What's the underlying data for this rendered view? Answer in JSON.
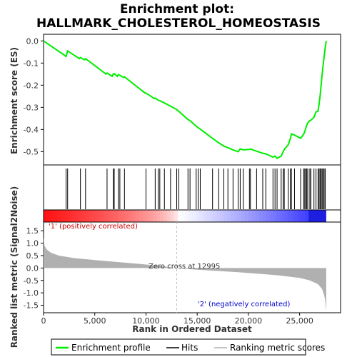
{
  "chart_data": {
    "type": "line",
    "title_line1": "Enrichment plot:",
    "title_line2": "HALLMARK_CHOLESTEROL_HOMEOSTASIS",
    "top_ylabel": "Enrichment score (ES)",
    "bottom_ylabel": "Ranked list metric (Signal2Noise)",
    "xlabel": "Rank in Ordered Dataset",
    "xlim": [
      0,
      29000
    ],
    "x_ticks": [
      0,
      5000,
      10000,
      15000,
      20000,
      25000
    ],
    "x_tick_labels": [
      "0",
      "5,000",
      "10,000",
      "15,000",
      "20,000",
      "25,000"
    ],
    "es_ylim": [
      -0.56,
      0.03
    ],
    "es_ticks": [
      0.0,
      -0.1,
      -0.2,
      -0.3,
      -0.4,
      -0.5
    ],
    "es_tick_labels": [
      "0.0",
      "-0.1",
      "-0.2",
      "-0.3",
      "-0.4",
      "-0.5"
    ],
    "metric_ylim": [
      -1.8,
      1.85
    ],
    "metric_ticks": [
      1.5,
      1.0,
      0.5,
      0.0,
      -0.5,
      -1.0,
      -1.5
    ],
    "metric_tick_labels": [
      "1.5",
      "1.0",
      "0.5",
      "0.0",
      "-0.5",
      "-1.0",
      "-1.5"
    ],
    "zero_cross_rank": 12995,
    "zero_cross_label": "Zero cross at 12995",
    "positive_label": "'1' (positively correlated)",
    "negative_label": "'2' (negatively correlated)",
    "n_genes": 27600,
    "hits": [
      2200,
      2350,
      3600,
      4100,
      6200,
      6800,
      6900,
      7300,
      7450,
      7900,
      10000,
      10900,
      11200,
      11350,
      11800,
      12400,
      13000,
      13200,
      14100,
      14300,
      14900,
      15100,
      15300,
      16500,
      17100,
      17600,
      18000,
      18500,
      19000,
      19200,
      19500,
      20100,
      20200,
      20800,
      21400,
      21700,
      22400,
      22600,
      22800,
      23200,
      23400,
      23500,
      23900,
      24100,
      24200,
      24500,
      25100,
      25400,
      25500,
      25600,
      25700,
      25800,
      26000,
      26100,
      26400,
      26600,
      26800,
      26900,
      27000,
      27100,
      27200,
      27300,
      27400,
      27500
    ],
    "es_curve": [
      [
        0,
        0.0
      ],
      [
        2200,
        -0.07
      ],
      [
        2350,
        -0.045
      ],
      [
        3500,
        -0.08
      ],
      [
        3600,
        -0.075
      ],
      [
        4000,
        -0.085
      ],
      [
        4100,
        -0.08
      ],
      [
        6100,
        -0.15
      ],
      [
        6200,
        -0.145
      ],
      [
        6700,
        -0.16
      ],
      [
        6800,
        -0.15
      ],
      [
        6900,
        -0.148
      ],
      [
        7200,
        -0.16
      ],
      [
        7300,
        -0.152
      ],
      [
        7450,
        -0.155
      ],
      [
        7800,
        -0.165
      ],
      [
        7900,
        -0.162
      ],
      [
        9900,
        -0.235
      ],
      [
        10000,
        -0.235
      ],
      [
        10800,
        -0.26
      ],
      [
        10900,
        -0.258
      ],
      [
        11200,
        -0.268
      ],
      [
        11350,
        -0.27
      ],
      [
        11800,
        -0.28
      ],
      [
        12400,
        -0.295
      ],
      [
        13000,
        -0.31
      ],
      [
        13200,
        -0.318
      ],
      [
        14100,
        -0.355
      ],
      [
        14300,
        -0.36
      ],
      [
        14900,
        -0.385
      ],
      [
        15100,
        -0.392
      ],
      [
        15300,
        -0.398
      ],
      [
        16500,
        -0.44
      ],
      [
        17100,
        -0.46
      ],
      [
        17600,
        -0.475
      ],
      [
        18000,
        -0.482
      ],
      [
        18500,
        -0.492
      ],
      [
        19000,
        -0.5
      ],
      [
        19200,
        -0.488
      ],
      [
        19500,
        -0.492
      ],
      [
        20100,
        -0.49
      ],
      [
        20200,
        -0.488
      ],
      [
        20800,
        -0.498
      ],
      [
        21400,
        -0.507
      ],
      [
        21700,
        -0.51
      ],
      [
        22400,
        -0.525
      ],
      [
        22600,
        -0.52
      ],
      [
        22800,
        -0.53
      ],
      [
        23200,
        -0.52
      ],
      [
        23400,
        -0.5
      ],
      [
        23500,
        -0.49
      ],
      [
        23900,
        -0.468
      ],
      [
        24100,
        -0.44
      ],
      [
        24200,
        -0.42
      ],
      [
        24500,
        -0.425
      ],
      [
        25100,
        -0.44
      ],
      [
        25400,
        -0.42
      ],
      [
        25500,
        -0.41
      ],
      [
        25600,
        -0.395
      ],
      [
        25700,
        -0.38
      ],
      [
        25800,
        -0.37
      ],
      [
        26000,
        -0.36
      ],
      [
        26100,
        -0.358
      ],
      [
        26400,
        -0.345
      ],
      [
        26600,
        -0.32
      ],
      [
        26800,
        -0.318
      ],
      [
        26900,
        -0.285
      ],
      [
        27000,
        -0.25
      ],
      [
        27100,
        -0.2
      ],
      [
        27200,
        -0.15
      ],
      [
        27300,
        -0.11
      ],
      [
        27400,
        -0.07
      ],
      [
        27500,
        -0.03
      ],
      [
        27600,
        0.0
      ]
    ],
    "metric_curve": [
      [
        0,
        1.25
      ],
      [
        100,
        0.9
      ],
      [
        300,
        0.75
      ],
      [
        700,
        0.62
      ],
      [
        1500,
        0.5
      ],
      [
        3000,
        0.4
      ],
      [
        5000,
        0.32
      ],
      [
        7000,
        0.25
      ],
      [
        9000,
        0.18
      ],
      [
        11000,
        0.1
      ],
      [
        12995,
        0.0
      ],
      [
        15000,
        -0.07
      ],
      [
        17000,
        -0.12
      ],
      [
        19000,
        -0.17
      ],
      [
        21000,
        -0.23
      ],
      [
        23000,
        -0.3
      ],
      [
        25000,
        -0.4
      ],
      [
        26000,
        -0.5
      ],
      [
        26800,
        -0.65
      ],
      [
        27200,
        -0.85
      ],
      [
        27400,
        -1.1
      ],
      [
        27500,
        -1.3
      ],
      [
        27600,
        -1.75
      ]
    ],
    "legend": [
      "Enrichment profile",
      "Hits",
      "Ranking metric scores"
    ],
    "colors": {
      "es_line": "#00ee00",
      "hit_line": "#000000",
      "metric_fill": "#b0b0b0",
      "zero_cross": "#bbbbbb",
      "positive_text": "#cc0000",
      "negative_text": "#0000cc",
      "bar_red": "#e00000",
      "bar_blue": "#2020e0"
    }
  }
}
